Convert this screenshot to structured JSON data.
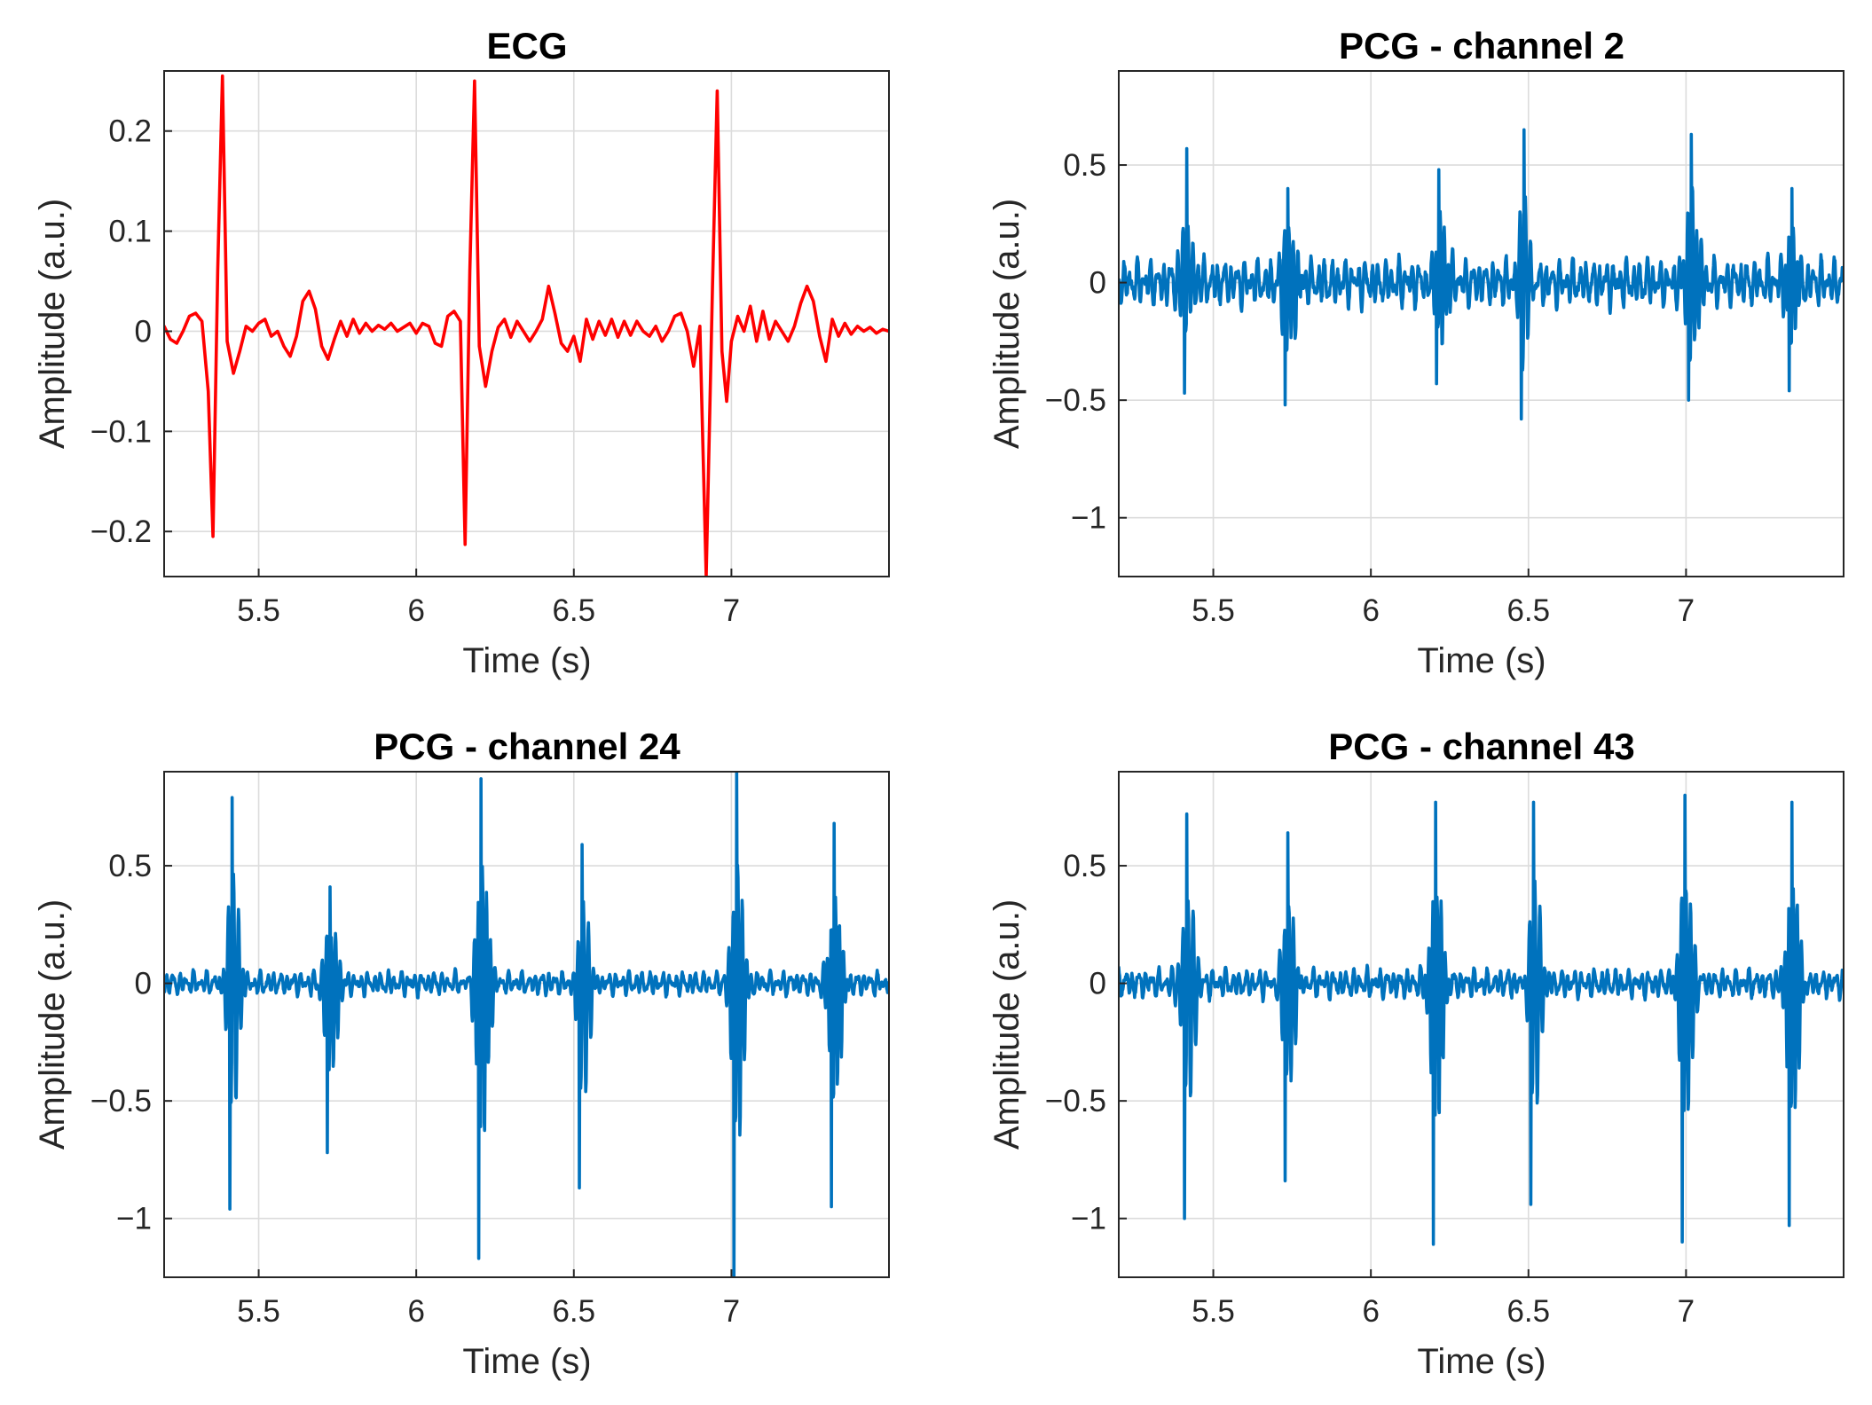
{
  "figure": {
    "panel_count": 4
  },
  "chart_data": [
    {
      "type": "line",
      "title": "ECG",
      "xlabel": "Time (s)",
      "ylabel": "Amplitude (a.u.)",
      "xlim": [
        5.2,
        7.5
      ],
      "ylim": [
        -0.245,
        0.26
      ],
      "xticks": [
        5.5,
        6,
        6.5,
        7
      ],
      "xticklabels": [
        "5.5",
        "6",
        "6.5",
        "7"
      ],
      "yticks": [
        -0.2,
        -0.1,
        0,
        0.1,
        0.2
      ],
      "yticklabels": [
        "−0.2",
        "−0.1",
        "0",
        "0.1",
        "0.2"
      ],
      "grid": true,
      "color": "#ff0000",
      "series": [
        {
          "x": [
            5.2,
            5.22,
            5.24,
            5.26,
            5.28,
            5.3,
            5.32,
            5.34,
            5.355,
            5.37,
            5.385,
            5.4,
            5.42,
            5.44,
            5.46,
            5.48,
            5.5,
            5.52,
            5.54,
            5.56,
            5.58,
            5.6,
            5.62,
            5.64,
            5.66,
            5.68,
            5.7,
            5.72,
            5.74,
            5.76,
            5.78,
            5.8,
            5.82,
            5.84,
            5.86,
            5.88,
            5.9,
            5.92,
            5.94,
            5.96,
            5.98,
            6.0,
            6.02,
            6.04,
            6.06,
            6.08,
            6.1,
            6.12,
            6.14,
            6.155,
            6.17,
            6.185,
            6.2,
            6.22,
            6.24,
            6.26,
            6.28,
            6.3,
            6.32,
            6.34,
            6.36,
            6.38,
            6.4,
            6.42,
            6.44,
            6.46,
            6.48,
            6.5,
            6.52,
            6.54,
            6.56,
            6.58,
            6.6,
            6.62,
            6.64,
            6.66,
            6.68,
            6.7,
            6.72,
            6.74,
            6.76,
            6.78,
            6.8,
            6.82,
            6.84,
            6.86,
            6.88,
            6.9,
            6.92,
            6.94,
            6.955,
            6.97,
            6.985,
            7.0,
            7.02,
            7.04,
            7.06,
            7.08,
            7.1,
            7.12,
            7.14,
            7.16,
            7.18,
            7.2,
            7.22,
            7.24,
            7.26,
            7.28,
            7.3,
            7.32,
            7.34,
            7.36,
            7.38,
            7.4,
            7.42,
            7.44,
            7.46,
            7.48,
            7.5
          ],
          "y": [
            0.005,
            -0.008,
            -0.012,
            0.0,
            0.015,
            0.018,
            0.01,
            -0.06,
            -0.205,
            0.06,
            0.255,
            -0.01,
            -0.042,
            -0.02,
            0.005,
            0.0,
            0.008,
            0.012,
            -0.005,
            0.0,
            -0.015,
            -0.025,
            -0.005,
            0.03,
            0.04,
            0.022,
            -0.015,
            -0.028,
            -0.008,
            0.01,
            -0.005,
            0.012,
            -0.002,
            0.008,
            0.0,
            0.006,
            0.002,
            0.008,
            0.0,
            0.004,
            0.008,
            -0.002,
            0.008,
            0.005,
            -0.012,
            -0.015,
            0.015,
            0.02,
            0.01,
            -0.213,
            0.06,
            0.25,
            -0.015,
            -0.055,
            -0.02,
            0.004,
            0.012,
            -0.006,
            0.01,
            0.0,
            -0.01,
            0.0,
            0.012,
            0.045,
            0.018,
            -0.012,
            -0.02,
            -0.005,
            -0.03,
            0.012,
            -0.008,
            0.01,
            -0.004,
            0.012,
            -0.006,
            0.01,
            -0.004,
            0.01,
            0.0,
            -0.005,
            0.005,
            -0.01,
            0.0,
            0.015,
            0.018,
            0.0,
            -0.035,
            0.005,
            -0.245,
            0.045,
            0.24,
            -0.02,
            -0.07,
            -0.01,
            0.015,
            0.0,
            0.025,
            -0.01,
            0.02,
            -0.008,
            0.01,
            0.0,
            -0.01,
            0.005,
            0.028,
            0.045,
            0.03,
            -0.005,
            -0.03,
            0.012,
            -0.005,
            0.008,
            -0.003,
            0.005,
            0.0,
            0.004,
            -0.002,
            0.002,
            0.0
          ]
        }
      ]
    },
    {
      "type": "line",
      "title": "PCG - channel 2",
      "xlabel": "Time (s)",
      "ylabel": "Amplitude (a.u.)",
      "xlim": [
        5.2,
        7.5
      ],
      "ylim": [
        -1.25,
        0.9
      ],
      "xticks": [
        5.5,
        6,
        6.5,
        7
      ],
      "xticklabels": [
        "5.5",
        "6",
        "6.5",
        "7"
      ],
      "yticks": [
        -1,
        -0.5,
        0,
        0.5
      ],
      "yticklabels": [
        "−1",
        "−0.5",
        "0",
        "0.5"
      ],
      "grid": true,
      "color": "#0072bd",
      "events": [
        {
          "t": 5.42,
          "pos": 0.57,
          "neg": -0.47
        },
        {
          "t": 5.74,
          "pos": 0.4,
          "neg": -0.52
        },
        {
          "t": 6.22,
          "pos": 0.48,
          "neg": -0.43
        },
        {
          "t": 6.49,
          "pos": 0.65,
          "neg": -0.58
        },
        {
          "t": 7.02,
          "pos": 0.63,
          "neg": -0.5
        },
        {
          "t": 7.34,
          "pos": 0.4,
          "neg": -0.46
        }
      ],
      "noise_level": 0.1
    },
    {
      "type": "line",
      "title": "PCG - channel 24",
      "xlabel": "Time (s)",
      "ylabel": "Amplitude (a.u.)",
      "xlim": [
        5.2,
        7.5
      ],
      "ylim": [
        -1.25,
        0.9
      ],
      "xticks": [
        5.5,
        6,
        6.5,
        7
      ],
      "xticklabels": [
        "5.5",
        "6",
        "6.5",
        "7"
      ],
      "yticks": [
        -1,
        -0.5,
        0,
        0.5
      ],
      "yticklabels": [
        "−1",
        "−0.5",
        "0",
        "0.5"
      ],
      "grid": true,
      "color": "#0072bd",
      "events": [
        {
          "t": 5.42,
          "pos": 0.79,
          "neg": -0.96
        },
        {
          "t": 5.73,
          "pos": 0.41,
          "neg": -0.72
        },
        {
          "t": 6.21,
          "pos": 0.87,
          "neg": -1.17
        },
        {
          "t": 6.53,
          "pos": 0.59,
          "neg": -0.87
        },
        {
          "t": 7.02,
          "pos": 0.9,
          "neg": -1.25
        },
        {
          "t": 7.33,
          "pos": 0.68,
          "neg": -0.95
        }
      ],
      "noise_level": 0.05
    },
    {
      "type": "line",
      "title": "PCG - channel 43",
      "xlabel": "Time (s)",
      "ylabel": "Amplitude (a.u.)",
      "xlim": [
        5.2,
        7.5
      ],
      "ylim": [
        -1.25,
        0.9
      ],
      "xticks": [
        5.5,
        6,
        6.5,
        7
      ],
      "xticklabels": [
        "5.5",
        "6",
        "6.5",
        "7"
      ],
      "yticks": [
        -1,
        -0.5,
        0,
        0.5
      ],
      "yticklabels": [
        "−1",
        "−0.5",
        "0",
        "0.5"
      ],
      "grid": true,
      "color": "#0072bd",
      "events": [
        {
          "t": 5.42,
          "pos": 0.72,
          "neg": -1.0
        },
        {
          "t": 5.74,
          "pos": 0.64,
          "neg": -0.84
        },
        {
          "t": 6.21,
          "pos": 0.77,
          "neg": -1.11
        },
        {
          "t": 6.52,
          "pos": 0.77,
          "neg": -0.94
        },
        {
          "t": 7.0,
          "pos": 0.8,
          "neg": -1.1
        },
        {
          "t": 7.34,
          "pos": 0.77,
          "neg": -1.03
        }
      ],
      "noise_level": 0.06
    }
  ]
}
